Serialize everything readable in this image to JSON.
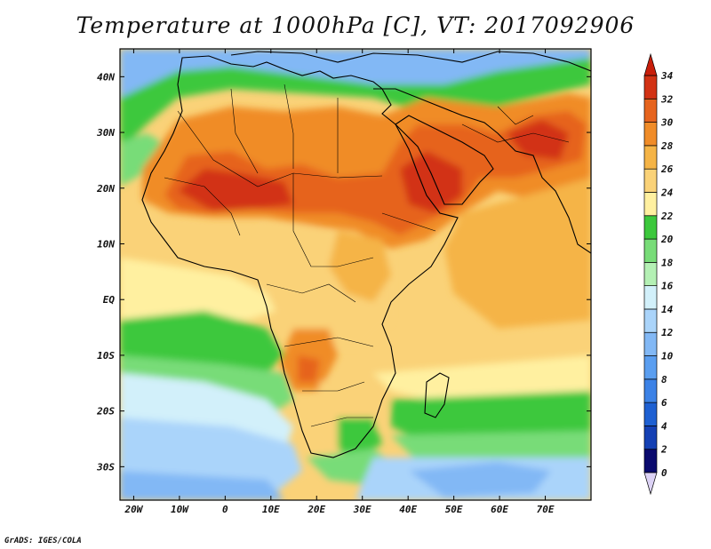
{
  "title": "Temperature at 1000hPa [C], VT: 2017092906",
  "credit": "GrADS: IGES/COLA",
  "map": {
    "lon_range": [
      -23,
      80
    ],
    "lat_range": [
      -36,
      45
    ],
    "lon_ticks": [
      {
        "value": -20,
        "label": "20W"
      },
      {
        "value": -10,
        "label": "10W"
      },
      {
        "value": 0,
        "label": "0"
      },
      {
        "value": 10,
        "label": "10E"
      },
      {
        "value": 20,
        "label": "20E"
      },
      {
        "value": 30,
        "label": "30E"
      },
      {
        "value": 40,
        "label": "40E"
      },
      {
        "value": 50,
        "label": "50E"
      },
      {
        "value": 60,
        "label": "60E"
      },
      {
        "value": 70,
        "label": "70E"
      }
    ],
    "lat_ticks": [
      {
        "value": 40,
        "label": "40N"
      },
      {
        "value": 30,
        "label": "30N"
      },
      {
        "value": 20,
        "label": "20N"
      },
      {
        "value": 10,
        "label": "10N"
      },
      {
        "value": 0,
        "label": "EQ"
      },
      {
        "value": -10,
        "label": "10S"
      },
      {
        "value": -20,
        "label": "20S"
      },
      {
        "value": -30,
        "label": "30S"
      }
    ]
  },
  "colorbar": {
    "levels": [
      "0",
      "2",
      "4",
      "6",
      "8",
      "10",
      "12",
      "14",
      "16",
      "18",
      "20",
      "22",
      "24",
      "26",
      "28",
      "30",
      "32",
      "34"
    ],
    "colors": [
      "#dcd2f5",
      "#0a0a6e",
      "#1440b4",
      "#1e60d2",
      "#3c82e6",
      "#5a9ef0",
      "#82b8f5",
      "#aad4fa",
      "#d2f0fa",
      "#b4f0b4",
      "#78dc78",
      "#3cc83c",
      "#fff0a0",
      "#fad278",
      "#f5b446",
      "#f08c28",
      "#e6641e",
      "#d23214",
      "#c81e0a"
    ]
  }
}
